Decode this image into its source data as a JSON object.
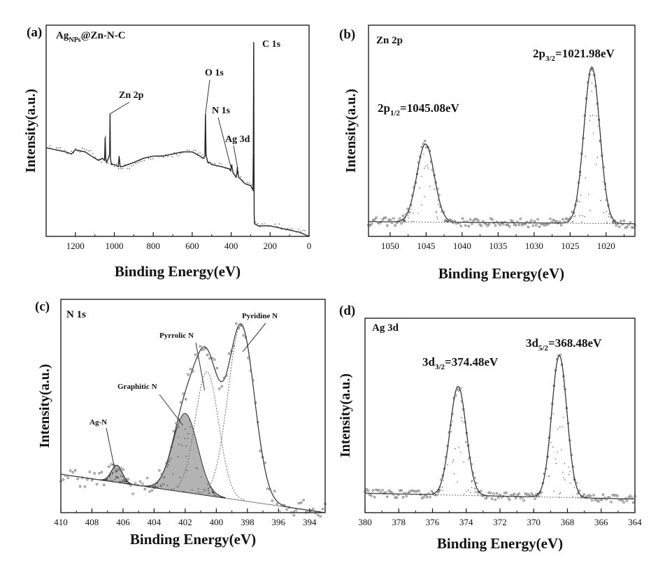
{
  "chart_data": [
    {
      "type": "line",
      "panel_label": "(a)",
      "title_main": "Ag",
      "title_sub": "NPs",
      "title_rest": "@Zn-N-C",
      "xlabel": "Binding Energy(eV)",
      "ylabel": "Intensity(a.u.)",
      "xlim": [
        1350,
        0
      ],
      "xticks": [
        1200,
        1000,
        800,
        600,
        400,
        200,
        0
      ],
      "tick_labels": [
        "1200",
        "1000",
        "800",
        "600",
        "400",
        "200",
        "0"
      ],
      "ylim": [
        0,
        100
      ],
      "series": [
        {
          "style": "survey",
          "x": [
            1350,
            1300,
            1250,
            1220,
            1200,
            1150,
            1100,
            1080,
            1060,
            1050,
            1047,
            1044,
            1040,
            1030,
            1024,
            1022,
            1020,
            1015,
            1000,
            980,
            975,
            970,
            960,
            900,
            850,
            800,
            750,
            700,
            650,
            600,
            580,
            560,
            545,
            535,
            532,
            529,
            525,
            520,
            510,
            500,
            450,
            410,
            402,
            398,
            390,
            375,
            370,
            368,
            366,
            362,
            350,
            330,
            300,
            288,
            286,
            284.5,
            283,
            282,
            280,
            260,
            200,
            150,
            100,
            50,
            0
          ],
          "y": [
            42,
            41,
            40,
            39,
            41,
            40,
            37,
            36,
            37,
            36,
            47,
            37,
            35,
            37,
            39,
            58,
            37,
            34,
            34,
            33,
            38,
            33,
            33,
            35,
            37,
            38,
            38,
            39,
            40,
            40,
            39,
            38,
            37,
            38,
            58,
            38,
            37,
            35,
            35,
            34,
            33,
            32,
            31,
            34,
            30,
            28,
            30,
            33,
            30,
            28,
            27,
            25,
            24,
            22,
            40,
            92,
            40,
            10,
            6,
            5,
            5,
            4,
            3,
            2,
            0
          ]
        }
      ],
      "annotations": [
        {
          "text": "Zn 2p"
        },
        {
          "text": "O 1s"
        },
        {
          "text": "N 1s"
        },
        {
          "text": "Ag 3d"
        },
        {
          "text": "C 1s"
        }
      ]
    },
    {
      "type": "line",
      "panel_label": "(b)",
      "title": "Zn 2p",
      "xlabel": "Binding Energy(eV)",
      "ylabel": "Intensity(a.u.)",
      "xlim": [
        1053,
        1016
      ],
      "xticks": [
        1050,
        1045,
        1040,
        1035,
        1030,
        1025,
        1020
      ],
      "tick_labels": [
        "1050",
        "1045",
        "1040",
        "1035",
        "1030",
        "1025",
        "1020"
      ],
      "ylim": [
        0,
        100
      ],
      "baseline": [
        7,
        6
      ],
      "peaks": [
        {
          "center": 1045.08,
          "height": 37,
          "width": 1.2,
          "label_main": "2p",
          "label_sub": "1/2",
          "label_rest": "=1045.08eV"
        },
        {
          "center": 1021.98,
          "height": 74,
          "width": 1.1,
          "label_main": "2p",
          "label_sub": "3/2",
          "label_rest": "=1021.98eV"
        }
      ]
    },
    {
      "type": "line",
      "panel_label": "(c)",
      "title": "N 1s",
      "xlabel": "Binding Energy(eV)",
      "ylabel": "Intensity(a.u.)",
      "xlim": [
        410,
        393
      ],
      "xticks": [
        410,
        408,
        406,
        404,
        402,
        400,
        398,
        396,
        394
      ],
      "tick_labels": [
        "410",
        "408",
        "406",
        "404",
        "402",
        "400",
        "398",
        "396",
        "394"
      ],
      "ylim": [
        0,
        100
      ],
      "baseline": [
        18,
        0
      ],
      "peaks": [
        {
          "center": 406.4,
          "height": 8,
          "width": 0.35,
          "label": "Ag-N",
          "filled": true
        },
        {
          "center": 402.0,
          "height": 37,
          "width": 0.8,
          "label": "Graphitic N",
          "filled": true
        },
        {
          "center": 400.6,
          "height": 58,
          "width": 0.75,
          "label": "Pyrrolic N",
          "filled": false
        },
        {
          "center": 398.4,
          "height": 82,
          "width": 0.85,
          "label": "Pyridine N",
          "filled": false
        }
      ]
    },
    {
      "type": "line",
      "panel_label": "(d)",
      "title": "Ag 3d",
      "xlabel": "Binding Energy(eV)",
      "ylabel": "Intensity(a.u.)",
      "xlim": [
        380,
        364
      ],
      "xticks": [
        380,
        378,
        376,
        374,
        372,
        370,
        368,
        366,
        364
      ],
      "tick_labels": [
        "380",
        "378",
        "376",
        "374",
        "372",
        "370",
        "368",
        "366",
        "364"
      ],
      "ylim": [
        0,
        100
      ],
      "baseline": [
        10,
        7
      ],
      "peaks": [
        {
          "center": 374.48,
          "height": 56,
          "width": 0.48,
          "label_main": "3d",
          "label_sub": "3/2",
          "label_rest": "=374.48eV"
        },
        {
          "center": 368.48,
          "height": 73,
          "width": 0.45,
          "label_main": "3d",
          "label_sub": "5/2",
          "label_rest": "=368.48eV"
        }
      ]
    }
  ]
}
